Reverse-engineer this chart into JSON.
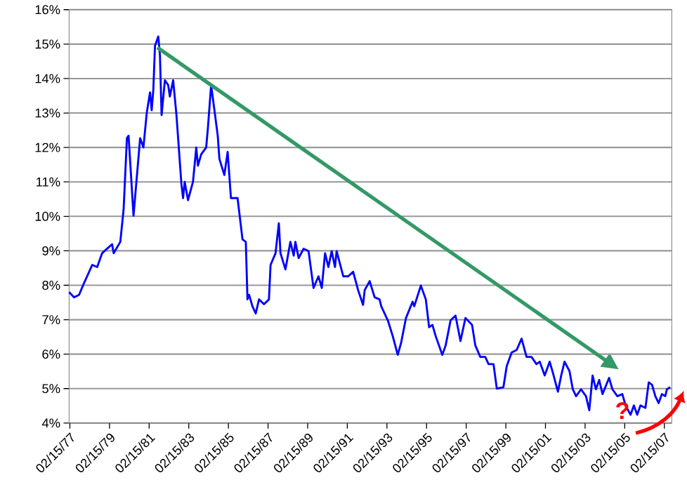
{
  "chart_data": {
    "type": "line",
    "xlim": [
      "1977-02-01",
      "2007-06-30"
    ],
    "ylim": [
      4,
      16
    ],
    "xticks": [
      {
        "value": "1977-02-15",
        "label": "02/15/77"
      },
      {
        "value": "1979-02-15",
        "label": "02/15/79"
      },
      {
        "value": "1981-02-15",
        "label": "02/15/81"
      },
      {
        "value": "1983-02-15",
        "label": "02/15/83"
      },
      {
        "value": "1985-02-15",
        "label": "02/15/85"
      },
      {
        "value": "1987-02-15",
        "label": "02/15/87"
      },
      {
        "value": "1989-02-15",
        "label": "02/15/89"
      },
      {
        "value": "1991-02-15",
        "label": "02/15/91"
      },
      {
        "value": "1993-02-15",
        "label": "02/15/93"
      },
      {
        "value": "1995-02-15",
        "label": "02/15/95"
      },
      {
        "value": "1997-02-15",
        "label": "02/15/97"
      },
      {
        "value": "1999-02-15",
        "label": "02/15/99"
      },
      {
        "value": "2001-02-15",
        "label": "02/15/01"
      },
      {
        "value": "2003-02-15",
        "label": "02/15/03"
      },
      {
        "value": "2005-02-15",
        "label": "02/15/05"
      },
      {
        "value": "2007-02-15",
        "label": "02/15/07"
      }
    ],
    "yticks": [
      {
        "value": 4,
        "label": "4%"
      },
      {
        "value": 5,
        "label": "5%"
      },
      {
        "value": 6,
        "label": "6%"
      },
      {
        "value": 7,
        "label": "7%"
      },
      {
        "value": 8,
        "label": "8%"
      },
      {
        "value": 9,
        "label": "9%"
      },
      {
        "value": 10,
        "label": "10%"
      },
      {
        "value": 11,
        "label": "11%"
      },
      {
        "value": 12,
        "label": "12%"
      },
      {
        "value": 13,
        "label": "13%"
      },
      {
        "value": 14,
        "label": "14%"
      },
      {
        "value": 15,
        "label": "15%"
      },
      {
        "value": 16,
        "label": "16%"
      }
    ],
    "grid": "y",
    "marker": "none",
    "annotations": [
      "?"
    ],
    "series": [
      {
        "color": "#0000ff",
        "x": [
          "1977-02",
          "1977-05",
          "1977-08",
          "1977-11",
          "1978-04",
          "1978-07",
          "1978-10",
          "1979-01",
          "1979-04",
          "1979-05",
          "1979-09",
          "1979-11",
          "1980-01",
          "1980-02",
          "1980-05",
          "1980-09",
          "1980-11",
          "1981-01",
          "1981-03",
          "1981-04",
          "1981-05",
          "1981-06",
          "1981-08",
          "1981-09",
          "1981-10",
          "1981-12",
          "1982-02",
          "1982-03",
          "1982-05",
          "1982-07",
          "1982-10",
          "1982-11",
          "1982-12",
          "1983-02",
          "1983-05",
          "1983-07",
          "1983-08",
          "1983-10",
          "1984-01",
          "1984-02",
          "1984-04",
          "1984-06",
          "1984-08",
          "1984-09",
          "1984-12",
          "1985-02",
          "1985-04",
          "1985-08",
          "1985-11",
          "1986-01",
          "1986-02",
          "1986-03",
          "1986-05",
          "1986-07",
          "1986-09",
          "1986-12",
          "1987-03",
          "1987-04",
          "1987-07",
          "1987-09",
          "1987-10",
          "1988-01",
          "1988-04",
          "1988-06",
          "1988-07",
          "1988-09",
          "1988-12",
          "1989-03",
          "1989-06",
          "1989-09",
          "1989-11",
          "1990-01",
          "1990-03",
          "1990-05",
          "1990-07",
          "1990-08",
          "1990-12",
          "1991-03",
          "1991-06",
          "1991-09",
          "1991-12",
          "1992-01",
          "1992-04",
          "1992-07",
          "1992-10",
          "1992-11",
          "1993-03",
          "1993-06",
          "1993-09",
          "1993-11",
          "1994-02",
          "1994-06",
          "1994-07",
          "1994-11",
          "1995-02",
          "1995-04",
          "1995-06",
          "1995-08",
          "1995-12",
          "1996-02",
          "1996-05",
          "1996-08",
          "1996-11",
          "1997-02",
          "1997-06",
          "1997-08",
          "1997-11",
          "1998-02",
          "1998-04",
          "1998-07",
          "1998-09",
          "1999-01",
          "1999-03",
          "1999-06",
          "1999-09",
          "1999-12",
          "2000-03",
          "2000-06",
          "2000-09",
          "2000-11",
          "2001-02",
          "2001-05",
          "2001-07",
          "2001-10",
          "2001-12",
          "2002-02",
          "2002-05",
          "2002-07",
          "2002-09",
          "2002-12",
          "2003-03",
          "2003-05",
          "2003-07",
          "2003-09",
          "2003-11",
          "2004-01",
          "2004-05",
          "2004-07",
          "2004-10",
          "2005-01",
          "2005-03",
          "2005-06",
          "2005-08",
          "2005-10",
          "2005-12",
          "2006-03",
          "2006-05",
          "2006-07",
          "2006-09",
          "2006-11",
          "2007-01",
          "2007-03",
          "2007-04",
          "2007-06"
        ],
        "values": [
          7.8,
          7.65,
          7.72,
          8.06,
          8.59,
          8.53,
          8.93,
          9.06,
          9.19,
          8.93,
          9.26,
          10.2,
          12.27,
          12.34,
          10.02,
          12.27,
          12.0,
          13.0,
          13.6,
          13.08,
          13.68,
          14.95,
          15.22,
          14.68,
          12.94,
          13.95,
          13.81,
          13.48,
          13.95,
          12.94,
          10.94,
          10.53,
          11.0,
          10.47,
          11.0,
          12.0,
          11.47,
          11.8,
          12.0,
          12.54,
          13.81,
          13.08,
          12.34,
          11.67,
          11.2,
          11.87,
          10.53,
          10.53,
          9.33,
          9.26,
          7.59,
          7.72,
          7.39,
          7.18,
          7.59,
          7.45,
          7.59,
          8.59,
          8.93,
          9.8,
          8.93,
          8.46,
          9.26,
          8.86,
          9.26,
          8.79,
          9.06,
          8.99,
          7.92,
          8.26,
          7.92,
          8.93,
          8.53,
          8.99,
          8.53,
          8.99,
          8.26,
          8.26,
          8.39,
          7.86,
          7.43,
          7.86,
          8.12,
          7.65,
          7.59,
          7.39,
          6.98,
          6.52,
          5.98,
          6.32,
          7.05,
          7.52,
          7.39,
          7.99,
          7.59,
          6.78,
          6.85,
          6.52,
          5.98,
          6.25,
          6.98,
          7.12,
          6.38,
          7.05,
          6.85,
          6.25,
          5.92,
          5.92,
          5.71,
          5.71,
          5.0,
          5.04,
          5.65,
          6.05,
          6.12,
          6.45,
          5.92,
          5.92,
          5.71,
          5.78,
          5.38,
          5.78,
          5.45,
          4.91,
          5.38,
          5.78,
          5.51,
          4.98,
          4.78,
          4.98,
          4.78,
          4.37,
          5.38,
          4.98,
          5.25,
          4.84,
          5.31,
          4.98,
          4.78,
          4.84,
          4.51,
          4.24,
          4.51,
          4.24,
          4.51,
          4.44,
          5.18,
          5.11,
          4.78,
          4.58,
          4.84,
          4.78,
          4.98,
          5.04
        ]
      },
      {
        "color": "#339966",
        "x": [
          "1981-07-15",
          "2004-08-01"
        ],
        "values": [
          14.9,
          5.65
        ]
      }
    ]
  }
}
